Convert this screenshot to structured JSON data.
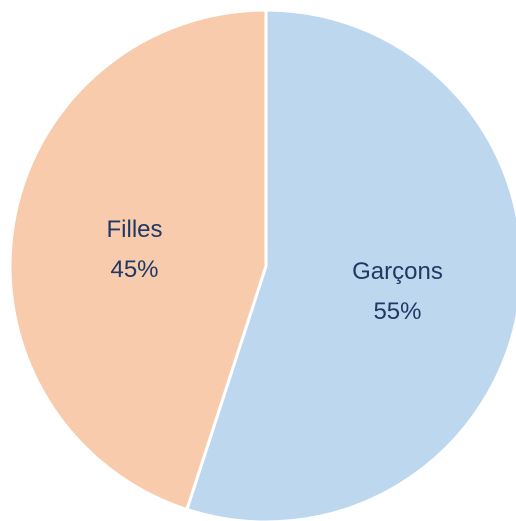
{
  "chart_data": {
    "type": "pie",
    "slices": [
      {
        "label": "Garçons",
        "value": 55,
        "value_label": "55%",
        "color": "#bdd7ee"
      },
      {
        "label": "Filles",
        "value": 45,
        "value_label": "45%",
        "color": "#f8cbad"
      }
    ],
    "start_angle_deg": 0,
    "direction": "clockwise",
    "separator_color": "#ffffff",
    "label_color": "#1f3864"
  }
}
